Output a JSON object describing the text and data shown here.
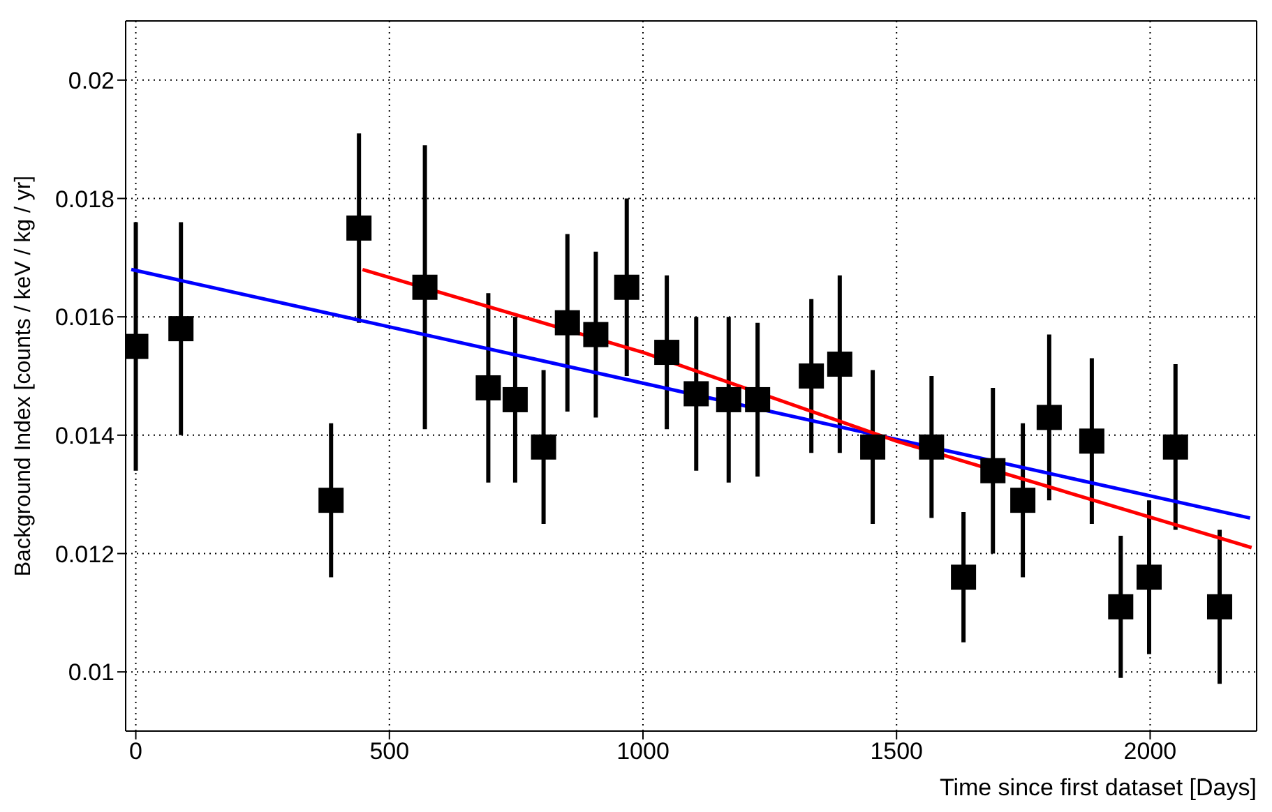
{
  "chart_data": {
    "type": "scatter",
    "xlabel": "Time since first dataset [Days]",
    "ylabel": "Background Index [counts / keV / kg / yr]",
    "xlim": [
      -20,
      2210
    ],
    "xticks": [
      0,
      500,
      1000,
      1500,
      2000
    ],
    "ylim": [
      0.009,
      0.021
    ],
    "yticks": [
      0.01,
      0.012,
      0.014,
      0.016,
      0.018,
      0.02
    ],
    "grid": true,
    "marker": "square",
    "series": [
      {
        "color": "#000000",
        "x": [
          0,
          89,
          385,
          440,
          570,
          695,
          748,
          804,
          851,
          907,
          968,
          1047,
          1105,
          1169,
          1226,
          1332,
          1388,
          1453,
          1569,
          1632,
          1690,
          1749,
          1801,
          1885,
          1942,
          1998,
          2050,
          2137
        ],
        "values": [
          0.0155,
          0.0158,
          0.0129,
          0.0175,
          0.0165,
          0.0148,
          0.0146,
          0.0138,
          0.0159,
          0.0157,
          0.0165,
          0.0154,
          0.0147,
          0.0146,
          0.0146,
          0.015,
          0.0152,
          0.0138,
          0.0138,
          0.0116,
          0.0134,
          0.0129,
          0.0143,
          0.0139,
          0.0111,
          0.0116,
          0.0138,
          0.0111
        ],
        "errors": [
          0.0021,
          0.0018,
          0.0013,
          0.0016,
          0.0024,
          0.0016,
          0.0014,
          0.0013,
          0.0015,
          0.0014,
          0.0015,
          0.0013,
          0.0013,
          0.0014,
          0.0013,
          0.0013,
          0.0015,
          0.0013,
          0.0012,
          0.0011,
          0.0014,
          0.0013,
          0.0014,
          0.0014,
          0.0012,
          0.0013,
          0.0014,
          0.0013
        ]
      },
      {
        "type": "line",
        "marker": "none",
        "color": "#0000ff",
        "x": [
          -9,
          2197
        ],
        "values": [
          0.0168,
          0.0126
        ]
      },
      {
        "type": "line",
        "marker": "none",
        "color": "#ff0000",
        "x": [
          447,
          1000,
          1500,
          2200
        ],
        "values": [
          0.0168,
          0.0154,
          0.0139,
          0.0121
        ]
      }
    ]
  }
}
